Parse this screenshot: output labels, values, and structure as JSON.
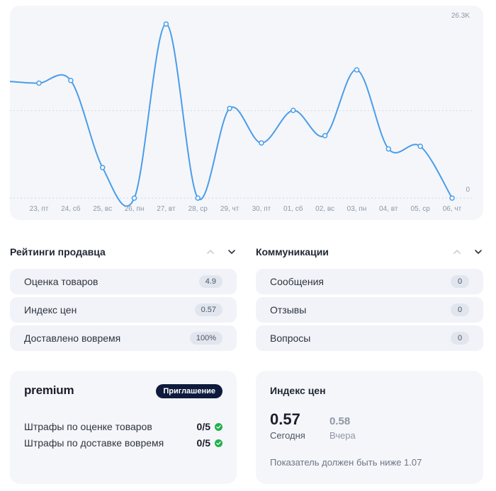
{
  "chart_data": {
    "type": "line",
    "categories": [
      "23, пт",
      "24, сб",
      "25, вс",
      "26, пн",
      "27, вт",
      "28, ср",
      "29, чт",
      "30, пт",
      "01, сб",
      "02, вс",
      "03, пн",
      "04, вт",
      "05, ср",
      "06, чт"
    ],
    "series": [
      {
        "values": [
          17300,
          17700,
          4600,
          0,
          26200,
          0,
          13500,
          8300,
          13200,
          9400,
          19300,
          7400,
          7800,
          0
        ]
      }
    ],
    "ylim": [
      0,
      26300
    ],
    "y_tick_labels": {
      "max": "26.3K",
      "min": "0"
    },
    "midline_value": 13150,
    "line_color": "#4a9de9",
    "grid": false
  },
  "seller_ratings": {
    "title": "Рейтинги продавца",
    "items": [
      {
        "label": "Оценка товаров",
        "value": "4.9"
      },
      {
        "label": "Индекс цен",
        "value": "0.57"
      },
      {
        "label": "Доставлено вовремя",
        "value": "100%"
      }
    ]
  },
  "communications": {
    "title": "Коммуникации",
    "items": [
      {
        "label": "Сообщения",
        "value": "0"
      },
      {
        "label": "Отзывы",
        "value": "0"
      },
      {
        "label": "Вопросы",
        "value": "0"
      }
    ]
  },
  "premium": {
    "logo_text": "premium",
    "badge": "Приглашение",
    "penalties": [
      {
        "label": "Штрафы по оценке товаров",
        "value": "0/5"
      },
      {
        "label": "Штрафы по доставке вовремя",
        "value": "0/5"
      }
    ]
  },
  "price_index": {
    "title": "Индекс цен",
    "today_value": "0.57",
    "today_label": "Сегодня",
    "yesterday_value": "0.58",
    "yesterday_label": "Вчера",
    "note": "Показатель должен быть ниже 1.07"
  },
  "colors": {
    "accent_line": "#4a9de9",
    "badge_bg": "#0f1b3d",
    "check_green": "#22b14c"
  }
}
